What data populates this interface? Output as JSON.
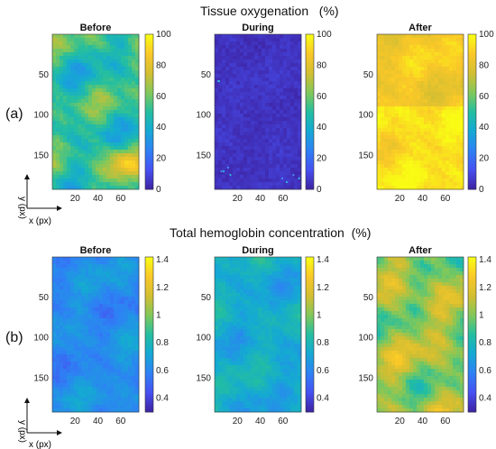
{
  "chart_data": [
    {
      "type": "heatmap",
      "title": "Tissue oxygenation (%)",
      "panel_label": "(a)",
      "xlabel": "x (px)",
      "ylabel": "y (px)",
      "x_ticks": [
        20,
        40,
        60
      ],
      "y_ticks": [
        50,
        100,
        150
      ],
      "colorbar_ticks": [
        "0",
        "20",
        "40",
        "60",
        "80",
        "100"
      ],
      "colorbar_range": [
        0,
        100
      ],
      "colormap": "parula",
      "panels": [
        {
          "name": "Before",
          "approx_mean": 50
        },
        {
          "name": "During",
          "approx_mean": 0
        },
        {
          "name": "After",
          "approx_mean": 88
        }
      ]
    },
    {
      "type": "heatmap",
      "title": "Total hemoglobin concentration (%)",
      "panel_label": "(b)",
      "xlabel": "x (px)",
      "ylabel": "y (px)",
      "x_ticks": [
        20,
        40,
        60
      ],
      "y_ticks": [
        50,
        100,
        150
      ],
      "colorbar_ticks": [
        "0.4",
        "0.6",
        "0.8",
        "1",
        "1.2",
        "1.4"
      ],
      "colorbar_range": [
        0.3,
        1.42
      ],
      "colormap": "parula",
      "panels": [
        {
          "name": "Before",
          "approx_mean": 0.65
        },
        {
          "name": "During",
          "approx_mean": 0.75
        },
        {
          "name": "After",
          "approx_mean": 1.05
        }
      ]
    }
  ],
  "header_a": {
    "title": "Tissue oxygenation",
    "unit": "(%)",
    "label": "(a)"
  },
  "header_b": {
    "title": "Total hemoglobin concentration",
    "unit": "(%)",
    "label": "(b)"
  },
  "axes_hint": {
    "x": "x (px)",
    "y": "y (px)"
  }
}
